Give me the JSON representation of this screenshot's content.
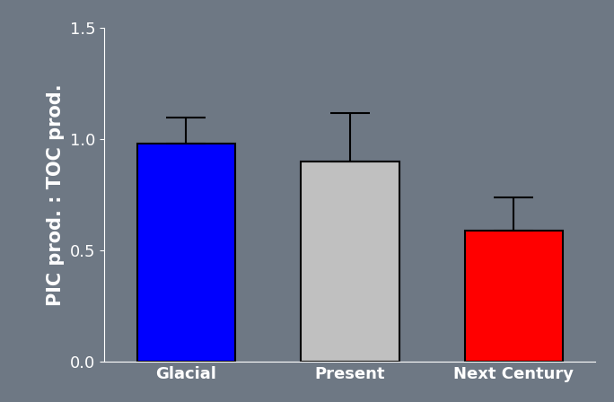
{
  "chart_data": {
    "type": "bar",
    "y_label": "PIC prod. : TOC prod.",
    "categories": [
      "Glacial",
      "Present",
      "Next Century"
    ],
    "values": [
      0.98,
      0.9,
      0.59
    ],
    "errors": [
      0.12,
      0.22,
      0.15
    ],
    "colors": [
      "#0000ff",
      "#c0c0c0",
      "#ff0000"
    ],
    "ylim": [
      0.0,
      1.5
    ],
    "yticks": [
      0.0,
      0.5,
      1.0,
      1.5
    ],
    "grid": false
  }
}
